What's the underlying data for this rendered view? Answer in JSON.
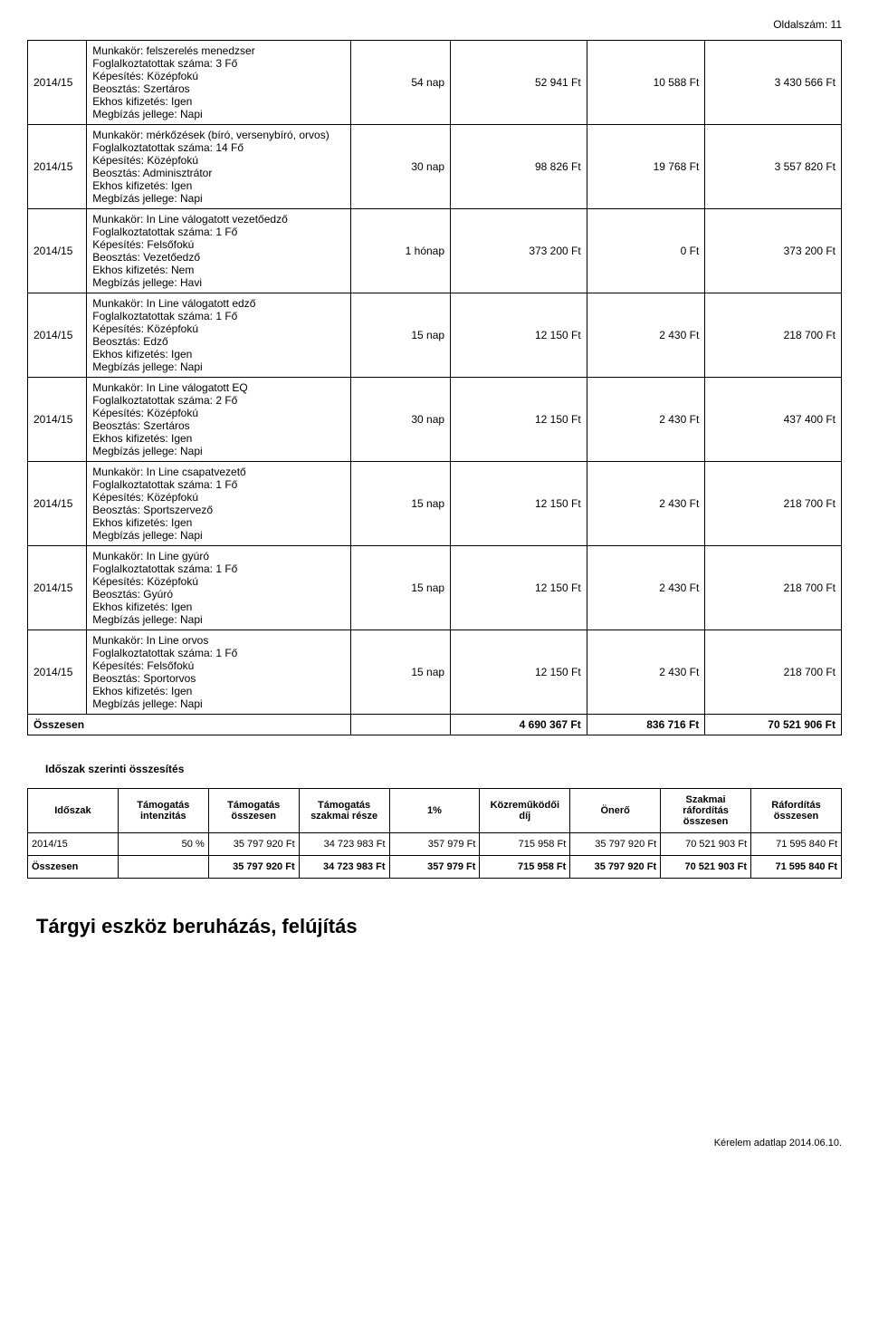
{
  "page_number_label": "Oldalszám: 11",
  "rows": [
    {
      "year": "2014/15",
      "lines": [
        "Munkakör: felszerelés menedzser",
        "Foglalkoztatottak száma: 3 Fő",
        "Képesítés: Középfokú",
        "Beosztás: Szertáros",
        "Ekhos kifizetés: Igen",
        "Megbízás jellege: Napi"
      ],
      "c1": "54 nap",
      "c2": "52 941 Ft",
      "c3": "10 588 Ft",
      "c4": "3 430 566 Ft"
    },
    {
      "year": "2014/15",
      "lines": [
        "Munkakör: mérkőzések (bíró, versenybíró, orvos)",
        "Foglalkoztatottak száma: 14 Fő",
        "Képesítés: Középfokú",
        "Beosztás: Adminisztrátor",
        "Ekhos kifizetés: Igen",
        "Megbízás jellege: Napi"
      ],
      "c1": "30 nap",
      "c2": "98 826 Ft",
      "c3": "19 768 Ft",
      "c4": "3 557 820 Ft"
    },
    {
      "year": "2014/15",
      "lines": [
        "Munkakör: In Line válogatott vezetőedző",
        "Foglalkoztatottak száma: 1 Fő",
        "Képesítés: Felsőfokú",
        "Beosztás: Vezetőedző",
        "Ekhos kifizetés: Nem",
        "Megbízás jellege: Havi"
      ],
      "c1": "1 hónap",
      "c2": "373 200 Ft",
      "c3": "0 Ft",
      "c4": "373 200 Ft"
    },
    {
      "year": "2014/15",
      "lines": [
        "Munkakör: In Line válogatott edző",
        "Foglalkoztatottak száma: 1 Fő",
        "Képesítés: Középfokú",
        "Beosztás: Edző",
        "Ekhos kifizetés: Igen",
        "Megbízás jellege: Napi"
      ],
      "c1": "15 nap",
      "c2": "12 150 Ft",
      "c3": "2 430 Ft",
      "c4": "218 700 Ft"
    },
    {
      "year": "2014/15",
      "lines": [
        "Munkakör: In Line válogatott EQ",
        "Foglalkoztatottak száma: 2 Fő",
        "Képesítés: Középfokú",
        "Beosztás: Szertáros",
        "Ekhos kifizetés: Igen",
        "Megbízás jellege: Napi"
      ],
      "c1": "30 nap",
      "c2": "12 150 Ft",
      "c3": "2 430 Ft",
      "c4": "437 400 Ft"
    },
    {
      "year": "2014/15",
      "lines": [
        "Munkakör: In Line csapatvezető",
        "Foglalkoztatottak száma: 1 Fő",
        "Képesítés: Középfokú",
        "Beosztás: Sportszervező",
        "Ekhos kifizetés: Igen",
        "Megbízás jellege: Napi"
      ],
      "c1": "15 nap",
      "c2": "12 150 Ft",
      "c3": "2 430 Ft",
      "c4": "218 700 Ft"
    },
    {
      "year": "2014/15",
      "lines": [
        "Munkakör: In Line gyúró",
        "Foglalkoztatottak száma: 1 Fő",
        "Képesítés: Középfokú",
        "Beosztás: Gyúró",
        "Ekhos kifizetés: Igen",
        "Megbízás jellege: Napi"
      ],
      "c1": "15 nap",
      "c2": "12 150 Ft",
      "c3": "2 430 Ft",
      "c4": "218 700 Ft"
    },
    {
      "year": "2014/15",
      "lines": [
        "Munkakör: In Line orvos",
        "Foglalkoztatottak száma: 1 Fő",
        "Képesítés: Felsőfokú",
        "Beosztás: Sportorvos",
        "Ekhos kifizetés: Igen",
        "Megbízás jellege: Napi"
      ],
      "c1": "15 nap",
      "c2": "12 150 Ft",
      "c3": "2 430 Ft",
      "c4": "218 700 Ft"
    }
  ],
  "totals": {
    "label": "Összesen",
    "c2": "4 690 367 Ft",
    "c3": "836 716 Ft",
    "c4": "70 521 906 Ft"
  },
  "summary_title": "Időszak szerinti összesítés",
  "summary_headers": [
    "Időszak",
    "Támogatás intenzitás",
    "Támogatás összesen",
    "Támogatás szakmai része",
    "1%",
    "Közreműködői díj",
    "Önerő",
    "Szakmai ráfordítás összesen",
    "Ráfordítás összesen"
  ],
  "summary_rows": [
    [
      "2014/15",
      "50 %",
      "35 797 920 Ft",
      "34 723 983 Ft",
      "357 979 Ft",
      "715 958 Ft",
      "35 797 920 Ft",
      "70 521 903 Ft",
      "71 595 840 Ft"
    ]
  ],
  "summary_total": [
    "Összesen",
    "",
    "35 797 920 Ft",
    "34 723 983 Ft",
    "357 979 Ft",
    "715 958 Ft",
    "35 797 920 Ft",
    "70 521 903 Ft",
    "71 595 840 Ft"
  ],
  "heading": "Tárgyi eszköz beruházás, felújítás",
  "footer": "Kérelem adatlap 2014.06.10."
}
